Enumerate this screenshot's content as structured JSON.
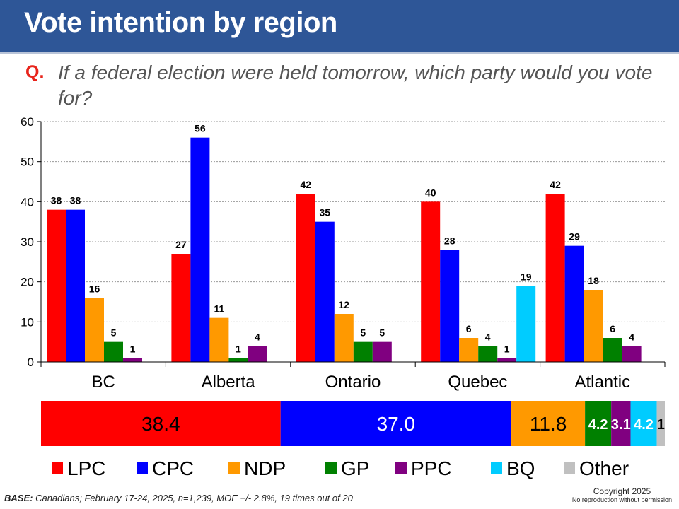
{
  "header": {
    "title": "Vote intention by region"
  },
  "question": {
    "marker": "Q.",
    "text": "If a federal election were held tomorrow, which party would you vote for?"
  },
  "footer": {
    "base_label": "BASE:",
    "base_text": "Canadians; February 17-24, 2025, n=1,239, MOE +/- 2.8%, 19 times out of 20",
    "copyright": "Copyright 2025",
    "reproduction": "No reproduction without permission"
  },
  "chart_data": [
    {
      "type": "bar",
      "categories": [
        "BC",
        "Alberta",
        "Ontario",
        "Quebec",
        "Atlantic"
      ],
      "ylim": [
        0,
        60
      ],
      "yticks": [
        "0",
        "10",
        "20",
        "30",
        "40",
        "50",
        "60"
      ],
      "grid": true,
      "series": [
        {
          "name": "LPC",
          "color": "#ff0000",
          "values": [
            38,
            27,
            42,
            40,
            42
          ],
          "labels": [
            "38",
            "27",
            "42",
            "40",
            "42"
          ]
        },
        {
          "name": "CPC",
          "color": "#0000ff",
          "values": [
            38,
            56,
            35,
            28,
            29
          ],
          "labels": [
            "38",
            "56",
            "35",
            "28",
            "29"
          ]
        },
        {
          "name": "NDP",
          "color": "#ff9900",
          "values": [
            16,
            11,
            12,
            6,
            18
          ],
          "labels": [
            "16",
            "11",
            "12",
            "6",
            "18"
          ]
        },
        {
          "name": "GP",
          "color": "#008000",
          "values": [
            5,
            1,
            5,
            4,
            6
          ],
          "labels": [
            "5",
            "1",
            "5",
            "4",
            "6"
          ]
        },
        {
          "name": "PPC",
          "color": "#800080",
          "values": [
            1,
            4,
            5,
            1,
            4
          ],
          "labels": [
            "1",
            "4",
            "5",
            "1",
            "4"
          ]
        },
        {
          "name": "BQ",
          "color": "#00ccff",
          "values": [
            null,
            null,
            null,
            19,
            null
          ],
          "labels": [
            null,
            null,
            null,
            "19",
            null
          ]
        }
      ]
    },
    {
      "type": "bar",
      "orientation": "horizontal-stacked",
      "segments": [
        {
          "name": "LPC",
          "value": 38.4,
          "label": "38.4",
          "color": "#ff0000"
        },
        {
          "name": "CPC",
          "value": 37.0,
          "label": "37.0",
          "color": "#0000ff"
        },
        {
          "name": "NDP",
          "value": 11.8,
          "label": "11.8",
          "color": "#ff9900"
        },
        {
          "name": "GP",
          "value": 4.2,
          "label": "4.2",
          "color": "#008000"
        },
        {
          "name": "PPC",
          "value": 3.1,
          "label": "3.1",
          "color": "#800080"
        },
        {
          "name": "BQ",
          "value": 4.2,
          "label": "4.2",
          "color": "#00ccff"
        },
        {
          "name": "Other",
          "value": 1.3,
          "label": "1",
          "color": "#c0c0c0"
        }
      ]
    }
  ],
  "legend": [
    {
      "name": "LPC",
      "color": "#ff0000"
    },
    {
      "name": "CPC",
      "color": "#0000ff"
    },
    {
      "name": "NDP",
      "color": "#ff9900"
    },
    {
      "name": "GP",
      "color": "#008000"
    },
    {
      "name": "PPC",
      "color": "#800080"
    },
    {
      "name": "BQ",
      "color": "#00ccff"
    },
    {
      "name": "Other",
      "color": "#c0c0c0"
    }
  ]
}
